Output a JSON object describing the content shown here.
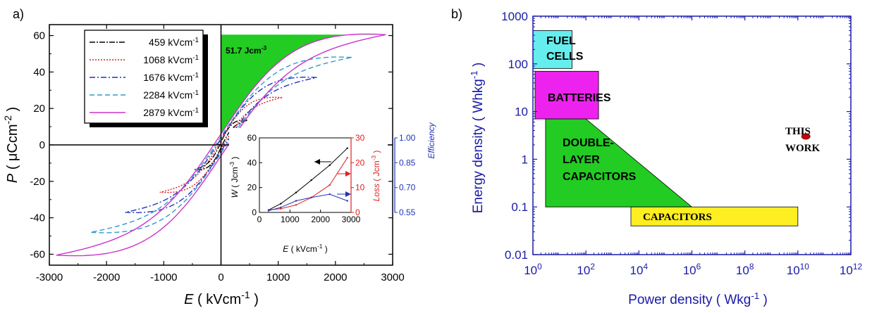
{
  "chart_data": [
    {
      "type": "line",
      "panel_label": "a)",
      "x_axis": {
        "label_var": "E",
        "label_units": " ( kVcm",
        "label_sup": "-1",
        "label_close": " )",
        "xlim": [
          -3000,
          3000
        ],
        "ticks": [
          -3000,
          -2000,
          -1000,
          0,
          1000,
          2000,
          3000
        ],
        "tick_labels": [
          "-3000",
          "-2000",
          "-1000",
          "0",
          "1000",
          "2000",
          "3000"
        ]
      },
      "y_axis": {
        "label_var": "P",
        "label_units": " ( μCcm",
        "label_sup": "-2",
        "label_close": " )",
        "ylim": [
          -66,
          66
        ],
        "ticks": [
          -60,
          -40,
          -20,
          0,
          20,
          40,
          60
        ],
        "tick_labels": [
          "-60",
          "-40",
          "-20",
          "0",
          "20",
          "40",
          "60"
        ]
      },
      "legend": {
        "position": "top-left",
        "entries": [
          {
            "label": "459 kVcm",
            "sup": "-1",
            "color": "#000000",
            "dash": "8,2,2,2"
          },
          {
            "label": "1068 kVcm",
            "sup": "-1",
            "color": "#d42020",
            "dash": "2,2"
          },
          {
            "label": "1676 kVcm",
            "sup": "-1",
            "color": "#2233bb",
            "dash": "8,3,2,3"
          },
          {
            "label": "2284 kVcm",
            "sup": "-1",
            "color": "#3399cc",
            "dash": "7,4"
          },
          {
            "label": "2879 kVcm",
            "sup": "-1",
            "color": "#cc33cc",
            "dash": ""
          }
        ]
      },
      "series": [
        {
          "label": "459 kVcm-1",
          "E_max": 459,
          "P_max": 13.5,
          "remnant": 1.5
        },
        {
          "label": "1068 kVcm-1",
          "E_max": 1068,
          "P_max": 26,
          "remnant": 2.5
        },
        {
          "label": "1676 kVcm-1",
          "E_max": 1676,
          "P_max": 37,
          "remnant": 3.5
        },
        {
          "label": "2284 kVcm-1",
          "E_max": 2284,
          "P_max": 48,
          "remnant": 4.5
        },
        {
          "label": "2879 kVcm-1",
          "E_max": 2879,
          "P_max": 60.5,
          "remnant": 6
        }
      ],
      "energy_annotation": {
        "label": "51.7 Jcm",
        "sup": "-3",
        "fill": "#22cc22"
      },
      "inset": {
        "x_axis": {
          "label_var": "E",
          "label_units": " ( kVcm",
          "label_sup": "-1",
          "label_close": " )",
          "xlim": [
            0,
            3000
          ],
          "ticks": [
            0,
            1000,
            2000,
            3000
          ],
          "tick_labels": [
            "0",
            "1000",
            "2000",
            "3000"
          ]
        },
        "y_left": {
          "label_var": "W",
          "label_units": " ( Jcm",
          "label_sup": "-3",
          "label_close": " )",
          "ylim": [
            0,
            60
          ],
          "ticks": [
            0,
            20,
            40,
            60
          ],
          "tick_labels": [
            "0",
            "20",
            "40",
            "60"
          ],
          "color": "#000000"
        },
        "y_right1": {
          "label_var": "Loss",
          "label_units": " ( Jcm",
          "label_sup": "-3",
          "label_close": " )",
          "ylim": [
            0,
            30
          ],
          "ticks": [
            0,
            10,
            20,
            30
          ],
          "tick_labels": [
            "0",
            "10",
            "20",
            "30"
          ],
          "color": "#dd2222"
        },
        "y_right2": {
          "label": "Efficiency",
          "ylim": [
            0.55,
            1.0
          ],
          "ticks": [
            0.55,
            0.7,
            0.85,
            1.0
          ],
          "tick_labels": [
            "0.55",
            "0.70",
            "0.85",
            "1.00"
          ],
          "color": "#2233bb"
        },
        "series": [
          {
            "name": "W",
            "color": "#000000",
            "x": [
              300,
              700,
              1200,
              1700,
              2300,
              2879
            ],
            "y": [
              2,
              7,
              16,
              26,
              38,
              51.7
            ]
          },
          {
            "name": "Loss",
            "color": "#dd2222",
            "x": [
              300,
              700,
              1200,
              1700,
              2300,
              2879
            ],
            "y": [
              1,
              1.5,
              3,
              6,
              11,
              22
            ]
          },
          {
            "name": "Efficiency",
            "color": "#2233bb",
            "x": [
              300,
              700,
              1200,
              1700,
              2300,
              2879
            ],
            "y": [
              0.56,
              0.58,
              0.62,
              0.64,
              0.66,
              0.62
            ]
          }
        ]
      }
    },
    {
      "type": "scatter",
      "panel_label": "b)",
      "scale": "log-log",
      "x_axis": {
        "label": "Power density ( Wkg",
        "label_sup": "-1",
        "label_close": " )",
        "xlim": [
          1,
          1000000000000
        ],
        "tick_exponents": [
          0,
          2,
          4,
          6,
          8,
          10,
          12
        ],
        "tick_labels": [
          "10",
          "10",
          "10",
          "10",
          "10",
          "10",
          "10"
        ],
        "tick_sups": [
          "0",
          "2",
          "4",
          "6",
          "8",
          "10",
          "12"
        ]
      },
      "y_axis": {
        "label": "Energy density ( Whkg",
        "label_sup": "-1",
        "label_close": " )",
        "ylim": [
          0.01,
          1000
        ],
        "ticks": [
          0.01,
          0.1,
          1,
          10,
          100,
          1000
        ],
        "tick_labels": [
          "0.01",
          "0.1",
          "1",
          "10",
          "100",
          "1000"
        ]
      },
      "regions": [
        {
          "label_lines": [
            "FUEL",
            "CELLS"
          ],
          "fill": "#66eeee",
          "x": [
            1,
            30
          ],
          "y": [
            80,
            500
          ]
        },
        {
          "label_lines": [
            "BATTERIES"
          ],
          "fill": "#ee22ee",
          "x": [
            1.2,
            300
          ],
          "y": [
            7,
            70
          ]
        },
        {
          "label_lines": [
            "DOUBLE-",
            "LAYER",
            "CAPACITORS"
          ],
          "fill": "#22cc22",
          "poly_x": [
            3,
            100,
            1000000,
            3
          ],
          "poly_y": [
            7,
            7,
            0.1,
            0.1
          ]
        },
        {
          "label_lines": [
            "CAPACITORS"
          ],
          "fill": "#ffee22",
          "x": [
            5000,
            10000000000
          ],
          "y": [
            0.04,
            0.1
          ]
        }
      ],
      "points": [
        {
          "label_lines": [
            "THIS",
            "WORK"
          ],
          "x": 20000000000,
          "y": 3,
          "color": "#cc0000"
        }
      ],
      "axis_color": "#1a1aa8"
    }
  ]
}
